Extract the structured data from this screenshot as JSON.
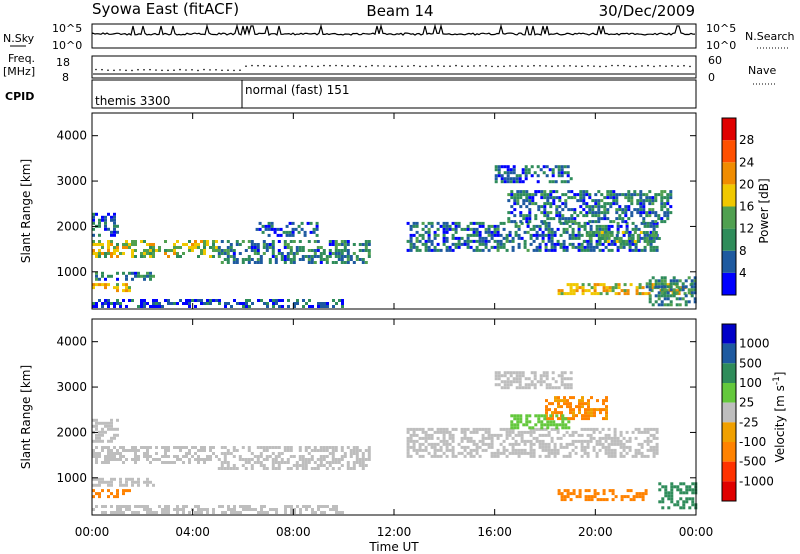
{
  "header": {
    "station": "Syowa East (fitACF)",
    "beam": "Beam 14",
    "date": "30/Dec/2009"
  },
  "nsky_panel": {
    "left_label": "N.Sky",
    "right_label": "N.Search",
    "left_ticks": [
      "10^5",
      "10^0"
    ],
    "right_ticks": [
      "10^5",
      "10^0"
    ]
  },
  "freq_panel": {
    "left_label_1": "Freq.",
    "left_label_2": "[MHz]",
    "right_label": "Nave",
    "left_ticks": [
      "18",
      "8"
    ],
    "right_ticks": [
      "60",
      "0"
    ]
  },
  "cpid_panel": {
    "label": "CPID",
    "modes": [
      {
        "name": "themis 3300",
        "start_hour": 0
      },
      {
        "name": "normal (fast) 151",
        "start_hour": 6
      }
    ]
  },
  "colors": {
    "power": [
      "#0000ff",
      "#1e5aa0",
      "#2f8c5a",
      "#50a050",
      "#f0c800",
      "#f08c00",
      "#ff5000",
      "#e00000"
    ],
    "velocity": [
      "#0000c8",
      "#1e5aa0",
      "#2f8c5a",
      "#64c83c",
      "#bebebe",
      "#f0a000",
      "#ff8200",
      "#ff3200",
      "#e00000"
    ]
  },
  "chart_data": [
    {
      "type": "heatmap",
      "panel": "power",
      "xlabel": "Time UT",
      "ylabel": "Slant Range [km]",
      "x_ticks": [
        "00:00",
        "04:00",
        "08:00",
        "12:00",
        "16:00",
        "20:00",
        "00:00"
      ],
      "xlim_hours": [
        0,
        24
      ],
      "ylim": [
        180,
        4500
      ],
      "y_ticks": [
        "1000",
        "2000",
        "3000",
        "4000"
      ],
      "colorbar": {
        "label": "Power [dB]",
        "ticks": [
          "4",
          "8",
          "12",
          "16",
          "20",
          "24",
          "28"
        ],
        "range": [
          0,
          30
        ]
      },
      "echo_regions": [
        {
          "t0": 0.0,
          "t1": 1.5,
          "r0": 600,
          "r1": 750,
          "value": 18
        },
        {
          "t0": 0.0,
          "t1": 5.0,
          "r0": 1350,
          "r1": 1700,
          "value": 15
        },
        {
          "t0": 0.0,
          "t1": 1.0,
          "r0": 1800,
          "r1": 2300,
          "value": 6
        },
        {
          "t0": 0.0,
          "t1": 2.5,
          "r0": 850,
          "r1": 1000,
          "value": 8
        },
        {
          "t0": 5.0,
          "t1": 11.0,
          "r0": 1200,
          "r1": 1700,
          "value": 8
        },
        {
          "t0": 6.5,
          "t1": 9.0,
          "r0": 1800,
          "r1": 2100,
          "value": 6
        },
        {
          "t0": 0.0,
          "t1": 10.0,
          "r0": 250,
          "r1": 400,
          "value": 5
        },
        {
          "t0": 12.5,
          "t1": 22.5,
          "r0": 1500,
          "r1": 2100,
          "value": 7
        },
        {
          "t0": 16.5,
          "t1": 23.0,
          "r0": 2100,
          "r1": 2800,
          "value": 7
        },
        {
          "t0": 16.0,
          "t1": 19.0,
          "r0": 3000,
          "r1": 3350,
          "value": 6
        },
        {
          "t0": 18.5,
          "t1": 23.8,
          "r0": 550,
          "r1": 750,
          "value": 17
        },
        {
          "t0": 19.5,
          "t1": 22.5,
          "r0": 1700,
          "r1": 1900,
          "value": 12
        },
        {
          "t0": 22.0,
          "t1": 24.0,
          "r0": 300,
          "r1": 900,
          "value": 9
        }
      ]
    },
    {
      "type": "heatmap",
      "panel": "velocity",
      "xlabel": "Time UT",
      "ylabel": "Slant Range [km]",
      "x_ticks": [
        "00:00",
        "04:00",
        "08:00",
        "12:00",
        "16:00",
        "20:00",
        "00:00"
      ],
      "xlim_hours": [
        0,
        24
      ],
      "ylim": [
        180,
        4500
      ],
      "y_ticks": [
        "1000",
        "2000",
        "3000",
        "4000"
      ],
      "colorbar": {
        "label": "Velocity [m s^-1]",
        "ticks": [
          "1000",
          "500",
          "100",
          "25",
          "-25",
          "-100",
          "-500",
          "-1000"
        ]
      },
      "echo_regions": [
        {
          "t0": 0.0,
          "t1": 1.5,
          "r0": 600,
          "r1": 750,
          "value": -150
        },
        {
          "t0": 0.0,
          "t1": 5.0,
          "r0": 1350,
          "r1": 1700,
          "value": 0
        },
        {
          "t0": 0.0,
          "t1": 1.0,
          "r0": 1800,
          "r1": 2300,
          "value": 0
        },
        {
          "t0": 0.0,
          "t1": 2.5,
          "r0": 850,
          "r1": 1000,
          "value": 0
        },
        {
          "t0": 5.0,
          "t1": 11.0,
          "r0": 1200,
          "r1": 1700,
          "value": 0
        },
        {
          "t0": 0.0,
          "t1": 10.0,
          "r0": 250,
          "r1": 400,
          "value": 0
        },
        {
          "t0": 12.5,
          "t1": 22.5,
          "r0": 1500,
          "r1": 2100,
          "value": 0
        },
        {
          "t0": 16.0,
          "t1": 19.0,
          "r0": 3000,
          "r1": 3350,
          "value": 0
        },
        {
          "t0": 18.0,
          "t1": 20.5,
          "r0": 2300,
          "r1": 2800,
          "value": -120
        },
        {
          "t0": 16.5,
          "t1": 19.0,
          "r0": 2100,
          "r1": 2400,
          "value": 60
        },
        {
          "t0": 18.5,
          "t1": 22.0,
          "r0": 550,
          "r1": 750,
          "value": -150
        },
        {
          "t0": 22.5,
          "t1": 24.0,
          "r0": 350,
          "r1": 900,
          "value": 300
        }
      ]
    }
  ]
}
